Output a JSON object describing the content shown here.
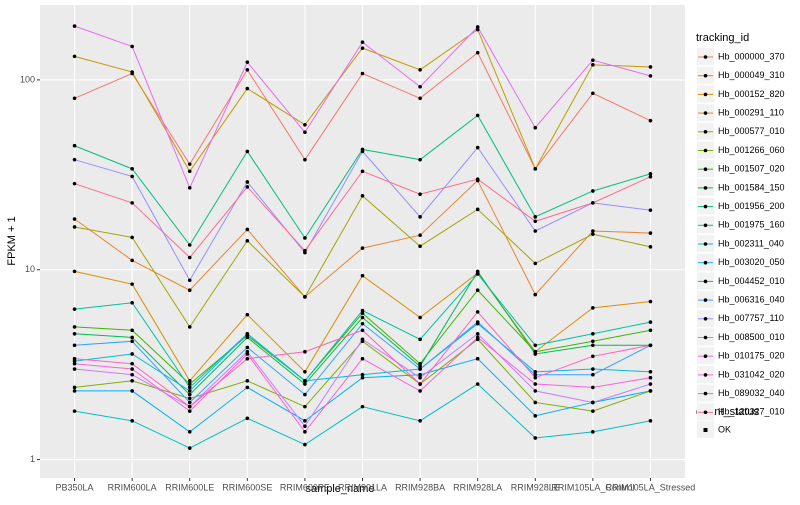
{
  "chart_data": {
    "type": "line",
    "log_scale_y": true,
    "grid": true,
    "x_label": "sample_name",
    "y_label": "FPKM + 1",
    "categories": [
      "PB350LA",
      "RRIM600LA",
      "RRIM600LE",
      "RRIM600SE",
      "RRIM600PE",
      "RRIM901LA",
      "RRIM928BA",
      "RRIM928LA",
      "RRIM928LE",
      "RRIM105LA_Control",
      "RRIM105LA_Stressed"
    ],
    "ylim": [
      0.8,
      248
    ],
    "yticks": [
      1,
      10,
      100
    ],
    "legend_title": "tracking_id",
    "series": [
      {
        "name": "Hb_000000_370",
        "color": "#F8766D",
        "values": [
          80,
          108,
          36,
          113,
          38,
          108,
          80,
          139,
          34,
          85,
          61
        ]
      },
      {
        "name": "Hb_000049_310",
        "color": "#EA8331",
        "values": [
          18.5,
          11.2,
          7.8,
          16.3,
          7.2,
          13,
          15.2,
          29.5,
          7.4,
          16,
          15.6
        ]
      },
      {
        "name": "Hb_000152_820",
        "color": "#D89000",
        "values": [
          9.8,
          8.4,
          2.6,
          5.8,
          2.9,
          9.3,
          5.6,
          9.6,
          3.7,
          6.3,
          6.8
        ]
      },
      {
        "name": "Hb_000291_110",
        "color": "#C09B00",
        "values": [
          133,
          110,
          33,
          90,
          58,
          147,
          113,
          184,
          34,
          120,
          117
        ]
      },
      {
        "name": "Hb_000577_010",
        "color": "#A3A500",
        "values": [
          16.8,
          14.8,
          5,
          14.2,
          7.2,
          24.5,
          13.3,
          20.8,
          10.8,
          15.4,
          13.2
        ]
      },
      {
        "name": "Hb_001266_060",
        "color": "#7CAE00",
        "values": [
          2.4,
          2.6,
          2.1,
          2.6,
          1.9,
          4.2,
          2.5,
          4.3,
          2.0,
          1.8,
          2.3
        ]
      },
      {
        "name": "Hb_001507_020",
        "color": "#39B600",
        "values": [
          5.0,
          4.8,
          2.5,
          4.5,
          2.6,
          5.9,
          3.2,
          7.8,
          3.7,
          4.2,
          4.8
        ]
      },
      {
        "name": "Hb_001584_150",
        "color": "#00BB4E",
        "values": [
          4.6,
          4.4,
          2.2,
          4.4,
          2.5,
          5.6,
          3.1,
          9.8,
          3.6,
          4.0,
          4.0
        ]
      },
      {
        "name": "Hb_001956_200",
        "color": "#00BF7D",
        "values": [
          45,
          34,
          13.5,
          42,
          14.7,
          43,
          38,
          65,
          19,
          26,
          32
        ]
      },
      {
        "name": "Hb_001975_160",
        "color": "#00C1A3",
        "values": [
          6.2,
          6.7,
          2.4,
          4.6,
          2.6,
          6.1,
          4.3,
          9.5,
          4.0,
          4.6,
          5.3
        ]
      },
      {
        "name": "Hb_002311_040",
        "color": "#00BFC4",
        "values": [
          1.8,
          1.6,
          1.15,
          1.65,
          1.2,
          1.9,
          1.6,
          2.5,
          1.3,
          1.4,
          1.6
        ]
      },
      {
        "name": "Hb_003020_050",
        "color": "#00BAE0",
        "values": [
          3.3,
          3.6,
          2.3,
          4.6,
          2.6,
          2.8,
          3.0,
          5.2,
          2.9,
          3.0,
          2.9
        ]
      },
      {
        "name": "Hb_004452_010",
        "color": "#00B0F6",
        "values": [
          2.3,
          2.3,
          1.4,
          2.4,
          1.6,
          2.7,
          2.8,
          3.4,
          1.7,
          2.0,
          2.3
        ]
      },
      {
        "name": "Hb_006316_040",
        "color": "#35A2FF",
        "values": [
          4.0,
          4.2,
          2.0,
          3.9,
          2.2,
          5.2,
          3.0,
          5.3,
          2.8,
          2.8,
          4.0
        ]
      },
      {
        "name": "Hb_007757_110",
        "color": "#9590FF",
        "values": [
          38,
          31,
          8.8,
          29,
          12.3,
          42,
          19,
          44,
          16,
          22.5,
          20.6
        ]
      },
      {
        "name": "Hb_008500_010",
        "color": "#C77CFF",
        "values": [
          3.0,
          2.8,
          1.9,
          3.7,
          1.5,
          4.3,
          2.7,
          4.6,
          2.3,
          2.0,
          2.5
        ]
      },
      {
        "name": "Hb_010175_020",
        "color": "#E76BF3",
        "values": [
          192,
          150,
          27,
          124,
          53,
          158,
          92,
          190,
          56,
          127,
          105
        ]
      },
      {
        "name": "Hb_031042_020",
        "color": "#FA62DB",
        "values": [
          3.2,
          3.0,
          1.8,
          3.6,
          1.4,
          3.4,
          2.3,
          4.4,
          2.5,
          2.4,
          2.7
        ]
      },
      {
        "name": "Hb_089032_040",
        "color": "#FF62BC",
        "values": [
          3.4,
          3.2,
          1.9,
          3.4,
          3.7,
          4.8,
          2.5,
          6.0,
          2.7,
          3.5,
          4.0
        ]
      },
      {
        "name": "Hb_120327_010",
        "color": "#FF6C91",
        "values": [
          28.4,
          22.5,
          11.6,
          27.3,
          12.6,
          33,
          25,
          30,
          18,
          22.5,
          30.9
        ]
      }
    ],
    "legend2": {
      "title": "quant_status",
      "labels": [
        "OK"
      ]
    }
  }
}
